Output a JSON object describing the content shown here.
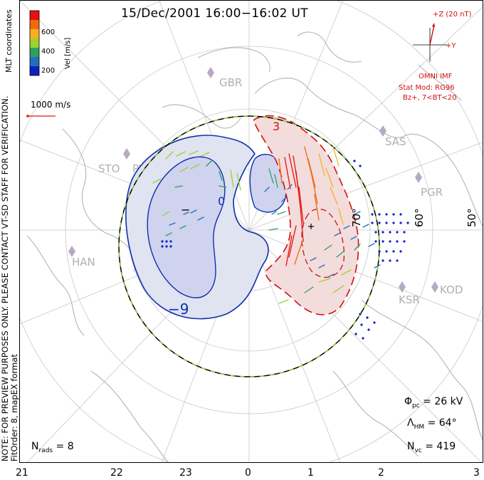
{
  "title": "15/Dec/2001  16:00−16:02  UT",
  "side_note_line1": "NOTE: FOR PREVIEW PURPOSES ONLY. PLEASE CONTACT VT-SD STAFF FOR VERIFICATION.",
  "side_note_line2": "FitOrder: 8, mapEX format",
  "coord_label": "MLT coordinates",
  "colorbar": {
    "label": "Vel [m/s]",
    "ticks": [
      "600",
      "400",
      "200"
    ],
    "colors": [
      "#e81010",
      "#f06a10",
      "#f8b020",
      "#9ed030",
      "#2ea060",
      "#2070c0",
      "#1020c0"
    ]
  },
  "vector_scale_label": "1000 m/s",
  "imf": {
    "z_label": "+Z (20 nT)",
    "y_label": "+Y",
    "source": "OMNI IMF",
    "model": "Stat Mod: RG96",
    "condition": "Bz+, 7<BT<20"
  },
  "stations": [
    "GBR",
    "SAS",
    "STO",
    "PGR",
    "HAN",
    "KSR",
    "KOD",
    "PYK"
  ],
  "latitude_labels": [
    "60°",
    "50°",
    "70°"
  ],
  "contour_labels": [
    "3",
    "0",
    "−9",
    "−"
  ],
  "mlt_hours": [
    "21",
    "22",
    "23",
    "0",
    "1",
    "2",
    "3"
  ],
  "stats": {
    "phi_pc": "Φ",
    "phi_sub": "pc",
    "phi_value": " = 26 kV",
    "lambda": "Λ",
    "lambda_sub": "HM",
    "lambda_value": " = 64°",
    "nvc": "N",
    "nvc_sub": "vc",
    "nvc_value": " = 419",
    "nrads": "N",
    "nrads_sub": "rads",
    "nrads_value": " = 8"
  }
}
